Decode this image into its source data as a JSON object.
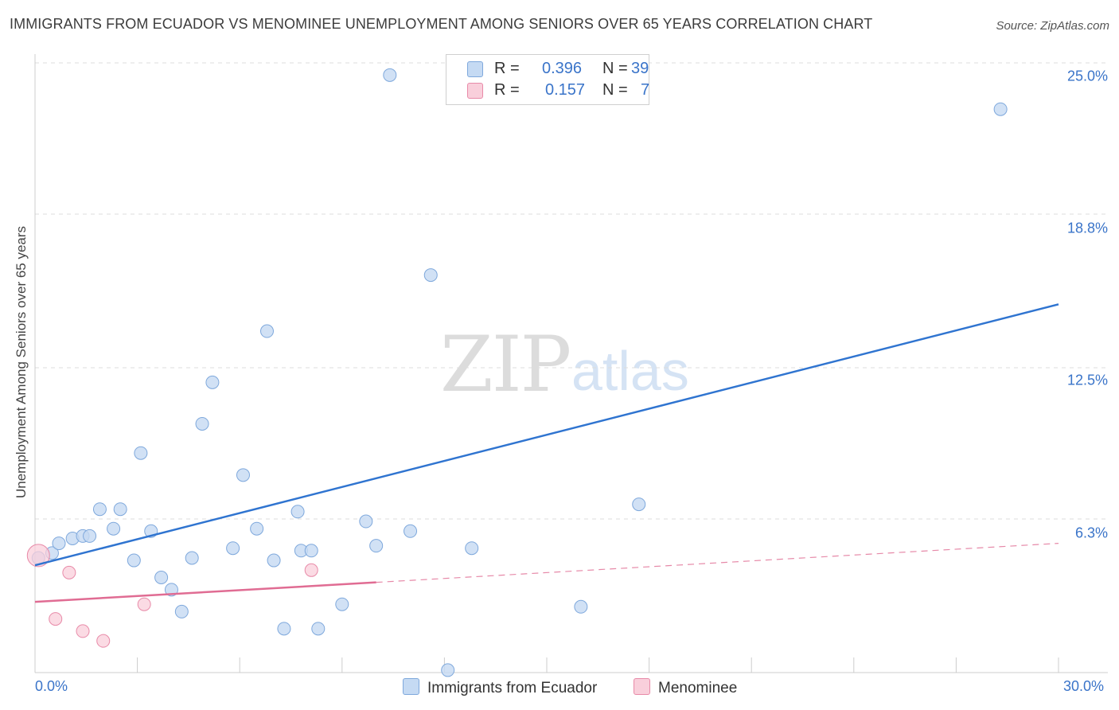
{
  "title": "IMMIGRANTS FROM ECUADOR VS MENOMINEE UNEMPLOYMENT AMONG SENIORS OVER 65 YEARS CORRELATION CHART",
  "source": "Source: ZipAtlas.com",
  "watermark": {
    "zip": "ZIP",
    "atlas": "atlas"
  },
  "legend_box": {
    "rows": [
      {
        "r_label": "R =",
        "r_value": "0.396",
        "n_label": "N =",
        "n_value": "39",
        "color": "#aecbf0"
      },
      {
        "r_label": "R =",
        "r_value": "0.157",
        "n_label": "N =",
        "n_value": "7",
        "color": "#f7bfd0"
      }
    ]
  },
  "bottom_legend": [
    {
      "label": "Immigrants from Ecuador",
      "color": "#aecbf0"
    },
    {
      "label": "Menominee",
      "color": "#f7bfd0"
    }
  ],
  "colors": {
    "blue_point_fill": "#c5daf3",
    "blue_point_stroke": "#7ea8dc",
    "blue_line": "#2f74d0",
    "pink_point_fill": "#f9cfdb",
    "pink_point_stroke": "#e88aa8",
    "pink_line": "#e06c93",
    "grid": "#dddddd",
    "tick_text": "#3a74c9"
  },
  "chart_data": {
    "type": "scatter",
    "title": "IMMIGRANTS FROM ECUADOR VS MENOMINEE UNEMPLOYMENT AMONG SENIORS OVER 65 YEARS CORRELATION CHART",
    "xlabel": "",
    "ylabel": "Unemployment Among Seniors over 65 years",
    "xlim": [
      0,
      30
    ],
    "ylim": [
      0,
      25.0
    ],
    "x_tick_labels": [
      "0.0%",
      "30.0%"
    ],
    "y_ticks": [
      6.3,
      12.5,
      18.8,
      25.0
    ],
    "y_tick_labels": [
      "6.3%",
      "12.5%",
      "18.8%",
      "25.0%"
    ],
    "grid": true,
    "legend_position": "top-center",
    "series": [
      {
        "name": "Immigrants from Ecuador",
        "r": 0.396,
        "n": 39,
        "trend": {
          "x": [
            0,
            30
          ],
          "y": [
            4.4,
            15.1
          ]
        },
        "points": [
          [
            0.1,
            4.7
          ],
          [
            0.5,
            4.9
          ],
          [
            0.7,
            5.3
          ],
          [
            1.1,
            5.5
          ],
          [
            1.4,
            5.6
          ],
          [
            1.6,
            5.6
          ],
          [
            1.9,
            6.7
          ],
          [
            2.3,
            5.9
          ],
          [
            2.5,
            6.7
          ],
          [
            2.9,
            4.6
          ],
          [
            3.1,
            9.0
          ],
          [
            3.4,
            5.8
          ],
          [
            3.7,
            3.9
          ],
          [
            4.0,
            3.4
          ],
          [
            4.3,
            2.5
          ],
          [
            4.6,
            4.7
          ],
          [
            4.9,
            10.2
          ],
          [
            5.2,
            11.9
          ],
          [
            5.8,
            5.1
          ],
          [
            6.1,
            8.1
          ],
          [
            6.5,
            5.9
          ],
          [
            6.8,
            14.0
          ],
          [
            7.0,
            4.6
          ],
          [
            7.3,
            1.8
          ],
          [
            7.7,
            6.6
          ],
          [
            7.8,
            5.0
          ],
          [
            8.1,
            5.0
          ],
          [
            8.3,
            1.8
          ],
          [
            9.0,
            2.8
          ],
          [
            9.7,
            6.2
          ],
          [
            10.0,
            5.2
          ],
          [
            10.4,
            24.5
          ],
          [
            11.0,
            5.8
          ],
          [
            11.6,
            16.3
          ],
          [
            12.1,
            0.1
          ],
          [
            12.8,
            5.1
          ],
          [
            16.0,
            2.7
          ],
          [
            17.7,
            6.9
          ],
          [
            28.3,
            23.1
          ]
        ]
      },
      {
        "name": "Menominee",
        "r": 0.157,
        "n": 7,
        "trend": {
          "x": [
            0,
            10
          ],
          "y": [
            2.9,
            3.7
          ]
        },
        "trend_extension": {
          "x": [
            10,
            30
          ],
          "y": [
            3.7,
            5.3
          ]
        },
        "points": [
          [
            0.1,
            4.8
          ],
          [
            0.6,
            2.2
          ],
          [
            1.0,
            4.1
          ],
          [
            1.4,
            1.7
          ],
          [
            2.0,
            1.3
          ],
          [
            3.2,
            2.8
          ],
          [
            8.1,
            4.2
          ]
        ]
      }
    ]
  }
}
